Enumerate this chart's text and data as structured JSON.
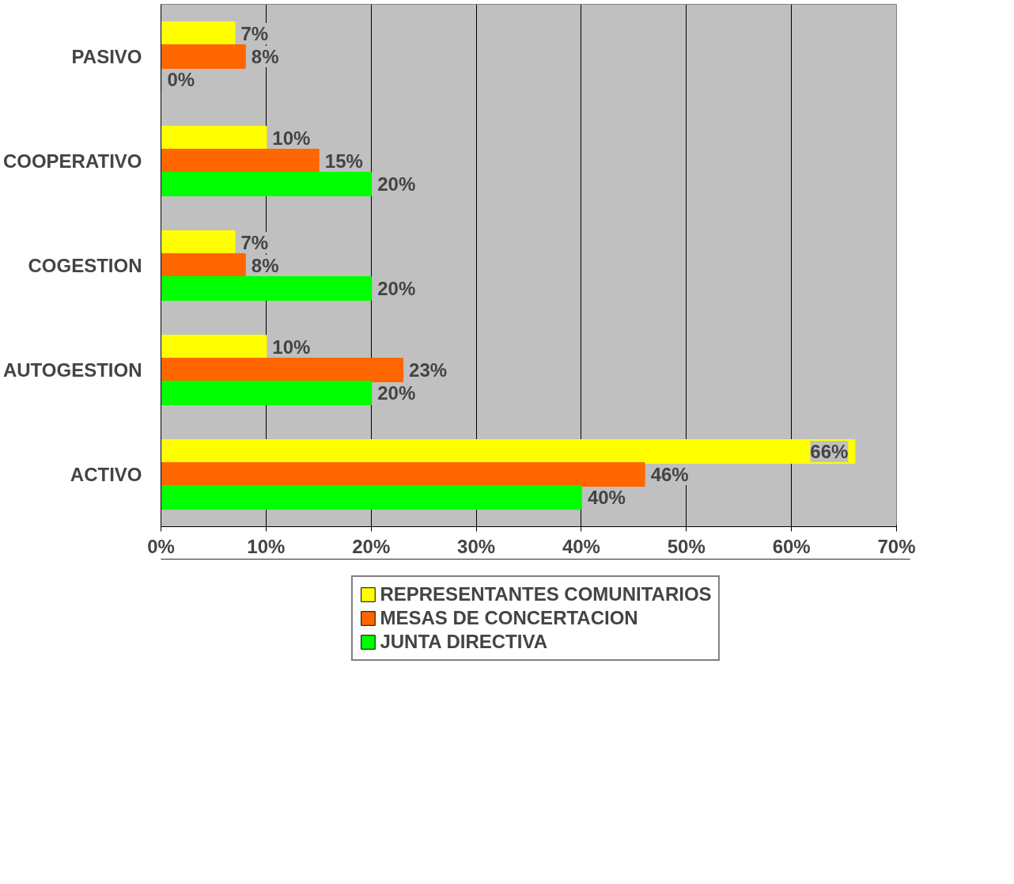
{
  "chart_data": {
    "type": "bar",
    "orientation": "horizontal",
    "categories": [
      "PASIVO",
      "COOPERATIVO",
      "COGESTION",
      "AUTOGESTION",
      "ACTIVO"
    ],
    "series": [
      {
        "name": "REPRESENTANTES COMUNITARIOS",
        "color": "#ffff00",
        "values": [
          7,
          10,
          7,
          10,
          66
        ],
        "value_labels": [
          "7%",
          "10%",
          "7%",
          "10%",
          "66%"
        ]
      },
      {
        "name": "MESAS DE CONCERTACION",
        "color": "#ff6600",
        "values": [
          8,
          15,
          8,
          23,
          46
        ],
        "value_labels": [
          "8%",
          "15%",
          "8%",
          "23%",
          "46%"
        ]
      },
      {
        "name": "JUNTA DIRECTIVA",
        "color": "#00ff00",
        "values": [
          0,
          20,
          20,
          20,
          40
        ],
        "value_labels": [
          "0%",
          "20%",
          "20%",
          "20%",
          "40%"
        ]
      }
    ],
    "xlim": [
      0,
      70
    ],
    "xticks": [
      {
        "value": 0,
        "label": "0%"
      },
      {
        "value": 10,
        "label": "10%"
      },
      {
        "value": 20,
        "label": "20%"
      },
      {
        "value": 30,
        "label": "30%"
      },
      {
        "value": 40,
        "label": "40%"
      },
      {
        "value": 50,
        "label": "50%"
      },
      {
        "value": 60,
        "label": "60%"
      },
      {
        "value": 70,
        "label": "70%"
      }
    ],
    "grid": "x",
    "legend": "bottom"
  }
}
